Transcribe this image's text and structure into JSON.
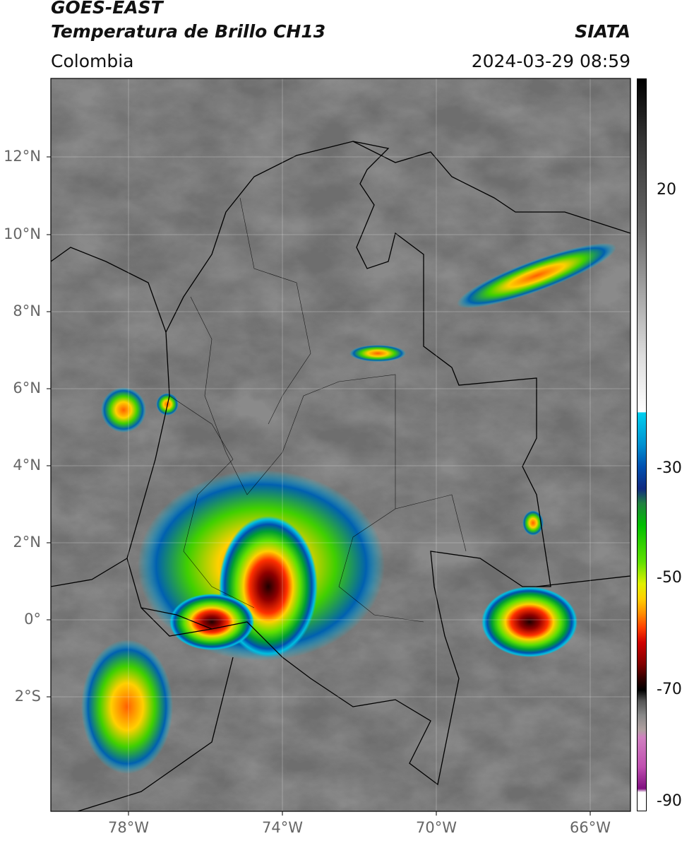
{
  "header": {
    "title": "GOES-EAST",
    "subtitle": "Temperatura de Brillo CH13",
    "source": "SIATA",
    "region": "Colombia",
    "timestamp": "2024-03-29 08:59"
  },
  "map": {
    "lat_labels": [
      "12°N",
      "10°N",
      "8°N",
      "6°N",
      "4°N",
      "2°N",
      "0°",
      "2°S"
    ],
    "lon_labels": [
      "78°W",
      "74°W",
      "70°W",
      "66°W"
    ]
  },
  "colorbar": {
    "labels": [
      "20",
      "-30",
      "-50",
      "-70",
      "-90"
    ]
  }
}
